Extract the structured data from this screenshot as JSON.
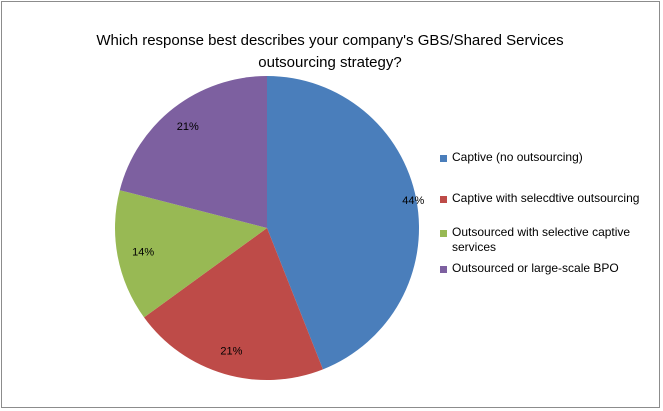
{
  "chart_data": {
    "type": "pie",
    "title_lines": [
      "Which response best describes your company's GBS/Shared Services",
      "outsourcing strategy?"
    ],
    "categories": [
      "Captive (no outsourcing)",
      "Captive with selecdtive outsourcing",
      "Outsourced with selective captive services",
      "Outsourced or large-scale BPO"
    ],
    "values": [
      44,
      21,
      14,
      21
    ],
    "labels": [
      "44%",
      "21%",
      "14%",
      "21%"
    ],
    "colors": [
      "#4a7ebb",
      "#be4b48",
      "#98b954",
      "#7d60a0"
    ],
    "legend_position": "right"
  }
}
